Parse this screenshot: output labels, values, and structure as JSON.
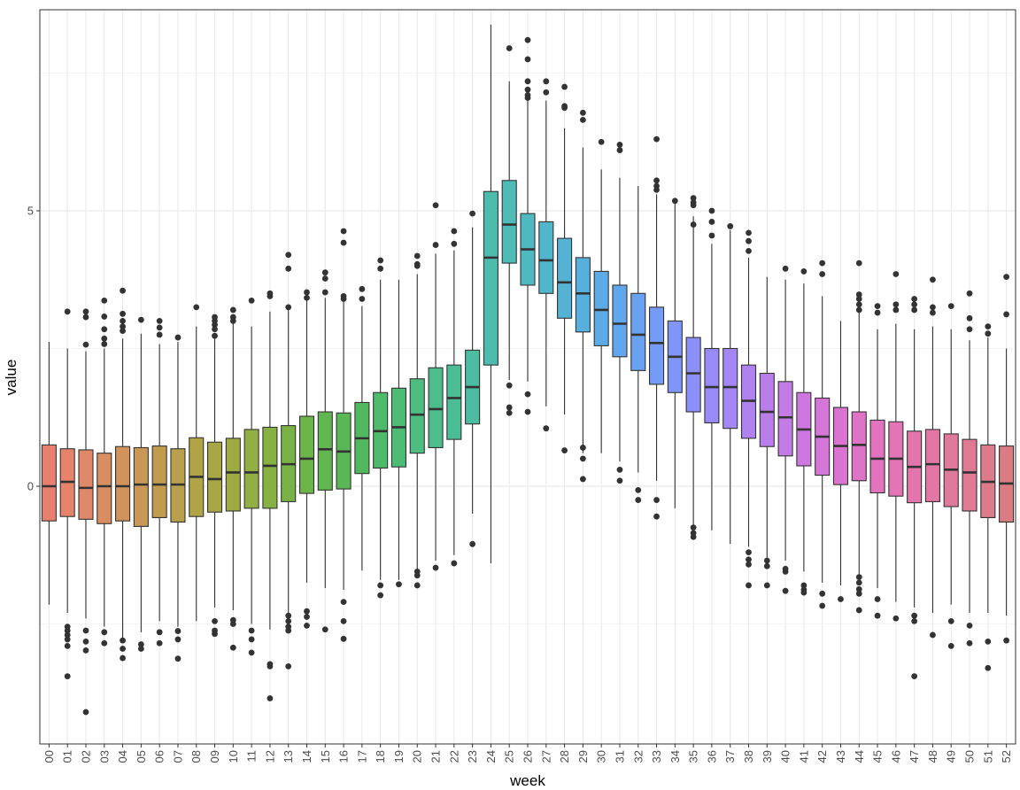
{
  "chart_data": {
    "type": "boxplot",
    "title": "",
    "xlabel": "week",
    "ylabel": "value",
    "ylim": [
      -4.7,
      8.6
    ],
    "yticks": [
      0,
      5
    ],
    "ytick_labels": [
      "0",
      "5"
    ],
    "grid": true,
    "legend": "none",
    "categories": [
      "00",
      "01",
      "02",
      "03",
      "04",
      "05",
      "06",
      "07",
      "08",
      "09",
      "10",
      "11",
      "12",
      "13",
      "14",
      "15",
      "16",
      "17",
      "18",
      "19",
      "20",
      "21",
      "22",
      "23",
      "24",
      "25",
      "26",
      "27",
      "28",
      "29",
      "30",
      "31",
      "32",
      "33",
      "34",
      "35",
      "36",
      "37",
      "38",
      "39",
      "40",
      "41",
      "42",
      "43",
      "44",
      "45",
      "46",
      "47",
      "48",
      "49",
      "50",
      "51",
      "52"
    ],
    "colors": [
      "#e8806f",
      "#e5846a",
      "#e0886a",
      "#d98e61",
      "#d1935b",
      "#c99857",
      "#c19c4f",
      "#b8a04d",
      "#b0a447",
      "#a7a745",
      "#9eab42",
      "#93ae42",
      "#87b142",
      "#7ab345",
      "#6db449",
      "#62b64f",
      "#59b756",
      "#52b85f",
      "#4ebb6a",
      "#4dbc74",
      "#4dbd80",
      "#4cbd8b",
      "#4bbd96",
      "#4cbda1",
      "#4dbcac",
      "#4ebbb7",
      "#4fb9c1",
      "#51b6cb",
      "#54b3d5",
      "#57afde",
      "#5cabe6",
      "#62a6ed",
      "#6aa1f2",
      "#749bf6",
      "#8095f8",
      "#8c8ff8",
      "#988af7",
      "#a486f4",
      "#af82f0",
      "#ba7eeb",
      "#c47be5",
      "#cd78df",
      "#d576d8",
      "#db74d0",
      "#df73c8",
      "#e273bf",
      "#e374b6",
      "#e375ad",
      "#e277a4",
      "#e0799b",
      "#de7b93",
      "#dc7c8b",
      "#db7c82"
    ],
    "series": [
      {
        "name": "",
        "stats": [
          {
            "min": -2.15,
            "q1": -0.63,
            "median": 0.0,
            "q3": 0.75,
            "max": 2.62,
            "outliers": []
          },
          {
            "min": -2.3,
            "q1": -0.55,
            "median": 0.08,
            "q3": 0.68,
            "max": 2.5,
            "outliers": [
              3.17,
              -2.55,
              -2.62,
              -2.7,
              -2.78,
              -2.9,
              -3.45
            ]
          },
          {
            "min": -2.4,
            "q1": -0.6,
            "median": -0.03,
            "q3": 0.66,
            "max": 2.45,
            "outliers": [
              3.17,
              3.07,
              2.57,
              -2.62,
              -2.82,
              -2.98,
              -4.1
            ]
          },
          {
            "min": -2.55,
            "q1": -0.68,
            "median": 0.0,
            "q3": 0.6,
            "max": 2.5,
            "outliers": [
              3.37,
              3.08,
              2.85,
              2.68,
              2.58,
              -2.65,
              -2.85
            ]
          },
          {
            "min": -2.75,
            "q1": -0.63,
            "median": 0.0,
            "q3": 0.72,
            "max": 2.68,
            "outliers": [
              3.55,
              3.13,
              3.0,
              2.9,
              2.82,
              -2.8,
              -2.95,
              -3.12
            ]
          },
          {
            "min": -2.65,
            "q1": -0.73,
            "median": 0.03,
            "q3": 0.7,
            "max": 2.77,
            "outliers": [
              3.02,
              -2.87,
              -2.95
            ]
          },
          {
            "min": -2.45,
            "q1": -0.57,
            "median": 0.03,
            "q3": 0.73,
            "max": 2.58,
            "outliers": [
              3.0,
              2.88,
              2.75,
              -2.65,
              -2.85
            ]
          },
          {
            "min": -2.55,
            "q1": -0.65,
            "median": 0.03,
            "q3": 0.68,
            "max": 2.62,
            "outliers": [
              2.7,
              -2.63,
              -2.78,
              -3.13
            ]
          },
          {
            "min": -2.45,
            "q1": -0.55,
            "median": 0.17,
            "q3": 0.88,
            "max": 2.9,
            "outliers": [
              3.25
            ]
          },
          {
            "min": -2.2,
            "q1": -0.47,
            "median": 0.13,
            "q3": 0.8,
            "max": 2.78,
            "outliers": [
              3.07,
              3.0,
              2.93,
              2.85,
              2.73,
              -2.45,
              -2.62,
              -2.68
            ]
          },
          {
            "min": -2.25,
            "q1": -0.45,
            "median": 0.25,
            "q3": 0.87,
            "max": 2.95,
            "outliers": [
              3.2,
              3.07,
              3.0,
              -2.43,
              -2.5,
              -2.93
            ]
          },
          {
            "min": -2.5,
            "q1": -0.4,
            "median": 0.25,
            "q3": 1.03,
            "max": 2.9,
            "outliers": [
              3.37,
              -2.62,
              -2.78,
              -3.02
            ]
          },
          {
            "min": -2.6,
            "q1": -0.4,
            "median": 0.37,
            "q3": 1.07,
            "max": 3.17,
            "outliers": [
              3.5,
              3.45,
              -3.23,
              -3.27,
              -3.85
            ]
          },
          {
            "min": -2.3,
            "q1": -0.28,
            "median": 0.4,
            "q3": 1.1,
            "max": 3.27,
            "outliers": [
              4.2,
              3.95,
              3.25,
              -2.35,
              -2.45,
              -2.55,
              -2.62,
              -3.27
            ]
          },
          {
            "min": -1.75,
            "q1": -0.13,
            "median": 0.5,
            "q3": 1.27,
            "max": 3.4,
            "outliers": [
              3.52,
              3.42,
              -2.27,
              -2.37,
              -2.53
            ]
          },
          {
            "min": -1.85,
            "q1": -0.07,
            "median": 0.67,
            "q3": 1.35,
            "max": 3.42,
            "outliers": [
              3.88,
              3.77,
              3.52,
              -2.6
            ]
          },
          {
            "min": -1.88,
            "q1": -0.05,
            "median": 0.63,
            "q3": 1.33,
            "max": 3.4,
            "outliers": [
              4.63,
              4.42,
              3.45,
              3.4,
              -2.1,
              -2.45,
              -2.77
            ]
          },
          {
            "min": -1.53,
            "q1": 0.23,
            "median": 0.87,
            "q3": 1.52,
            "max": 3.27,
            "outliers": [
              3.58,
              3.4
            ]
          },
          {
            "min": -1.7,
            "q1": 0.33,
            "median": 1.0,
            "q3": 1.7,
            "max": 3.75,
            "outliers": [
              4.1,
              3.95,
              -1.8,
              -1.98
            ]
          },
          {
            "min": -1.7,
            "q1": 0.35,
            "median": 1.07,
            "q3": 1.78,
            "max": 3.75,
            "outliers": [
              -1.78
            ]
          },
          {
            "min": -1.5,
            "q1": 0.6,
            "median": 1.3,
            "q3": 1.95,
            "max": 3.85,
            "outliers": [
              4.18,
              4.03,
              4.0,
              -1.55,
              -1.62,
              -1.8
            ]
          },
          {
            "min": -1.35,
            "q1": 0.7,
            "median": 1.4,
            "q3": 2.15,
            "max": 4.22,
            "outliers": [
              5.1,
              4.38,
              -1.48
            ]
          },
          {
            "min": -1.25,
            "q1": 0.85,
            "median": 1.6,
            "q3": 2.2,
            "max": 4.28,
            "outliers": [
              4.63,
              4.4,
              -1.4
            ]
          },
          {
            "min": -0.5,
            "q1": 1.13,
            "median": 1.8,
            "q3": 2.47,
            "max": 4.7,
            "outliers": [
              4.95,
              -1.05
            ]
          },
          {
            "min": -1.4,
            "q1": 2.2,
            "median": 4.15,
            "q3": 5.35,
            "max": 8.38,
            "outliers": []
          },
          {
            "min": 1.93,
            "q1": 4.05,
            "median": 4.75,
            "q3": 5.55,
            "max": 7.35,
            "outliers": [
              7.95,
              1.83,
              1.43,
              1.33
            ]
          },
          {
            "min": 1.9,
            "q1": 3.65,
            "median": 4.3,
            "q3": 4.95,
            "max": 7.0,
            "outliers": [
              8.1,
              7.75,
              7.35,
              7.2,
              7.1,
              7.05,
              1.67,
              1.35
            ]
          },
          {
            "min": 1.45,
            "q1": 3.5,
            "median": 4.1,
            "q3": 4.8,
            "max": 7.0,
            "outliers": [
              7.35,
              7.15,
              1.05
            ]
          },
          {
            "min": 1.3,
            "q1": 3.05,
            "median": 3.7,
            "q3": 4.5,
            "max": 6.5,
            "outliers": [
              7.25,
              6.9,
              6.87,
              0.65
            ]
          },
          {
            "min": 0.6,
            "q1": 2.8,
            "median": 3.5,
            "q3": 4.15,
            "max": 6.15,
            "outliers": [
              6.78,
              6.65,
              0.7,
              0.5,
              0.13
            ]
          },
          {
            "min": 0.6,
            "q1": 2.55,
            "median": 3.2,
            "q3": 3.9,
            "max": 5.75,
            "outliers": [
              6.25
            ]
          },
          {
            "min": 0.45,
            "q1": 2.35,
            "median": 2.95,
            "q3": 3.65,
            "max": 5.6,
            "outliers": [
              6.2,
              6.1,
              0.3,
              0.1
            ]
          },
          {
            "min": 0.25,
            "q1": 2.1,
            "median": 2.75,
            "q3": 3.5,
            "max": 5.45,
            "outliers": [
              -0.07,
              -0.25
            ]
          },
          {
            "min": 0.1,
            "q1": 1.85,
            "median": 2.6,
            "q3": 3.25,
            "max": 5.3,
            "outliers": [
              6.3,
              5.55,
              5.45,
              5.38,
              -0.25,
              -0.55
            ]
          },
          {
            "min": -0.4,
            "q1": 1.7,
            "median": 2.35,
            "q3": 3.0,
            "max": 5.15,
            "outliers": [
              5.18
            ]
          },
          {
            "min": -0.7,
            "q1": 1.35,
            "median": 2.05,
            "q3": 2.7,
            "max": 4.9,
            "outliers": [
              5.23,
              5.15,
              5.1,
              4.75,
              -0.75,
              -0.85,
              -0.92
            ]
          },
          {
            "min": -0.8,
            "q1": 1.15,
            "median": 1.8,
            "q3": 2.5,
            "max": 4.4,
            "outliers": [
              5.0,
              4.8,
              4.55
            ]
          },
          {
            "min": -1.05,
            "q1": 1.05,
            "median": 1.8,
            "q3": 2.5,
            "max": 4.65,
            "outliers": [
              4.72
            ]
          },
          {
            "min": -1.1,
            "q1": 0.87,
            "median": 1.55,
            "q3": 2.2,
            "max": 4.15,
            "outliers": [
              4.6,
              4.45,
              4.27,
              -1.2,
              -1.33,
              -1.42,
              -1.8
            ]
          },
          {
            "min": -1.3,
            "q1": 0.72,
            "median": 1.35,
            "q3": 2.05,
            "max": 3.8,
            "outliers": [
              -1.35,
              -1.45,
              -1.8
            ]
          },
          {
            "min": -1.35,
            "q1": 0.55,
            "median": 1.25,
            "q3": 1.9,
            "max": 3.75,
            "outliers": [
              3.95,
              -1.5,
              -1.55,
              -1.9
            ]
          },
          {
            "min": -1.55,
            "q1": 0.37,
            "median": 1.03,
            "q3": 1.7,
            "max": 3.68,
            "outliers": [
              3.9,
              -1.8,
              -1.88,
              -1.93
            ]
          },
          {
            "min": -1.75,
            "q1": 0.2,
            "median": 0.9,
            "q3": 1.6,
            "max": 3.45,
            "outliers": [
              4.05,
              3.85,
              -1.95,
              -2.17
            ]
          },
          {
            "min": -1.8,
            "q1": 0.03,
            "median": 0.73,
            "q3": 1.43,
            "max": 3.0,
            "outliers": [
              -2.05
            ]
          },
          {
            "min": -1.6,
            "q1": 0.1,
            "median": 0.75,
            "q3": 1.35,
            "max": 3.2,
            "outliers": [
              4.05,
              3.48,
              3.4,
              3.3,
              3.2,
              -1.65,
              -1.75,
              -1.87,
              -1.95,
              -2.25
            ]
          },
          {
            "min": -1.85,
            "q1": -0.12,
            "median": 0.5,
            "q3": 1.2,
            "max": 2.85,
            "outliers": [
              3.27,
              3.15,
              -2.05,
              -2.35
            ]
          },
          {
            "min": -2.1,
            "q1": -0.18,
            "median": 0.5,
            "q3": 1.17,
            "max": 2.95,
            "outliers": [
              3.85,
              3.3,
              3.2,
              -2.4
            ]
          },
          {
            "min": -2.2,
            "q1": -0.3,
            "median": 0.35,
            "q3": 1.0,
            "max": 2.85,
            "outliers": [
              3.4,
              3.3,
              3.2,
              -2.35,
              -2.45,
              -3.45
            ]
          },
          {
            "min": -2.3,
            "q1": -0.28,
            "median": 0.4,
            "q3": 1.03,
            "max": 2.9,
            "outliers": [
              3.75,
              3.25,
              3.15,
              -2.7
            ]
          },
          {
            "min": -2.15,
            "q1": -0.37,
            "median": 0.3,
            "q3": 0.95,
            "max": 2.85,
            "outliers": [
              3.27,
              -2.45,
              -2.9
            ]
          },
          {
            "min": -2.3,
            "q1": -0.45,
            "median": 0.25,
            "q3": 0.85,
            "max": 2.65,
            "outliers": [
              3.5,
              3.05,
              2.85,
              -2.53,
              -2.85
            ]
          },
          {
            "min": -2.3,
            "q1": -0.57,
            "median": 0.08,
            "q3": 0.75,
            "max": 2.7,
            "outliers": [
              2.9,
              2.77,
              -2.82,
              -3.3
            ]
          },
          {
            "min": -2.35,
            "q1": -0.65,
            "median": 0.05,
            "q3": 0.73,
            "max": 2.5,
            "outliers": [
              3.8,
              3.12,
              -2.8
            ]
          }
        ]
      }
    ]
  }
}
